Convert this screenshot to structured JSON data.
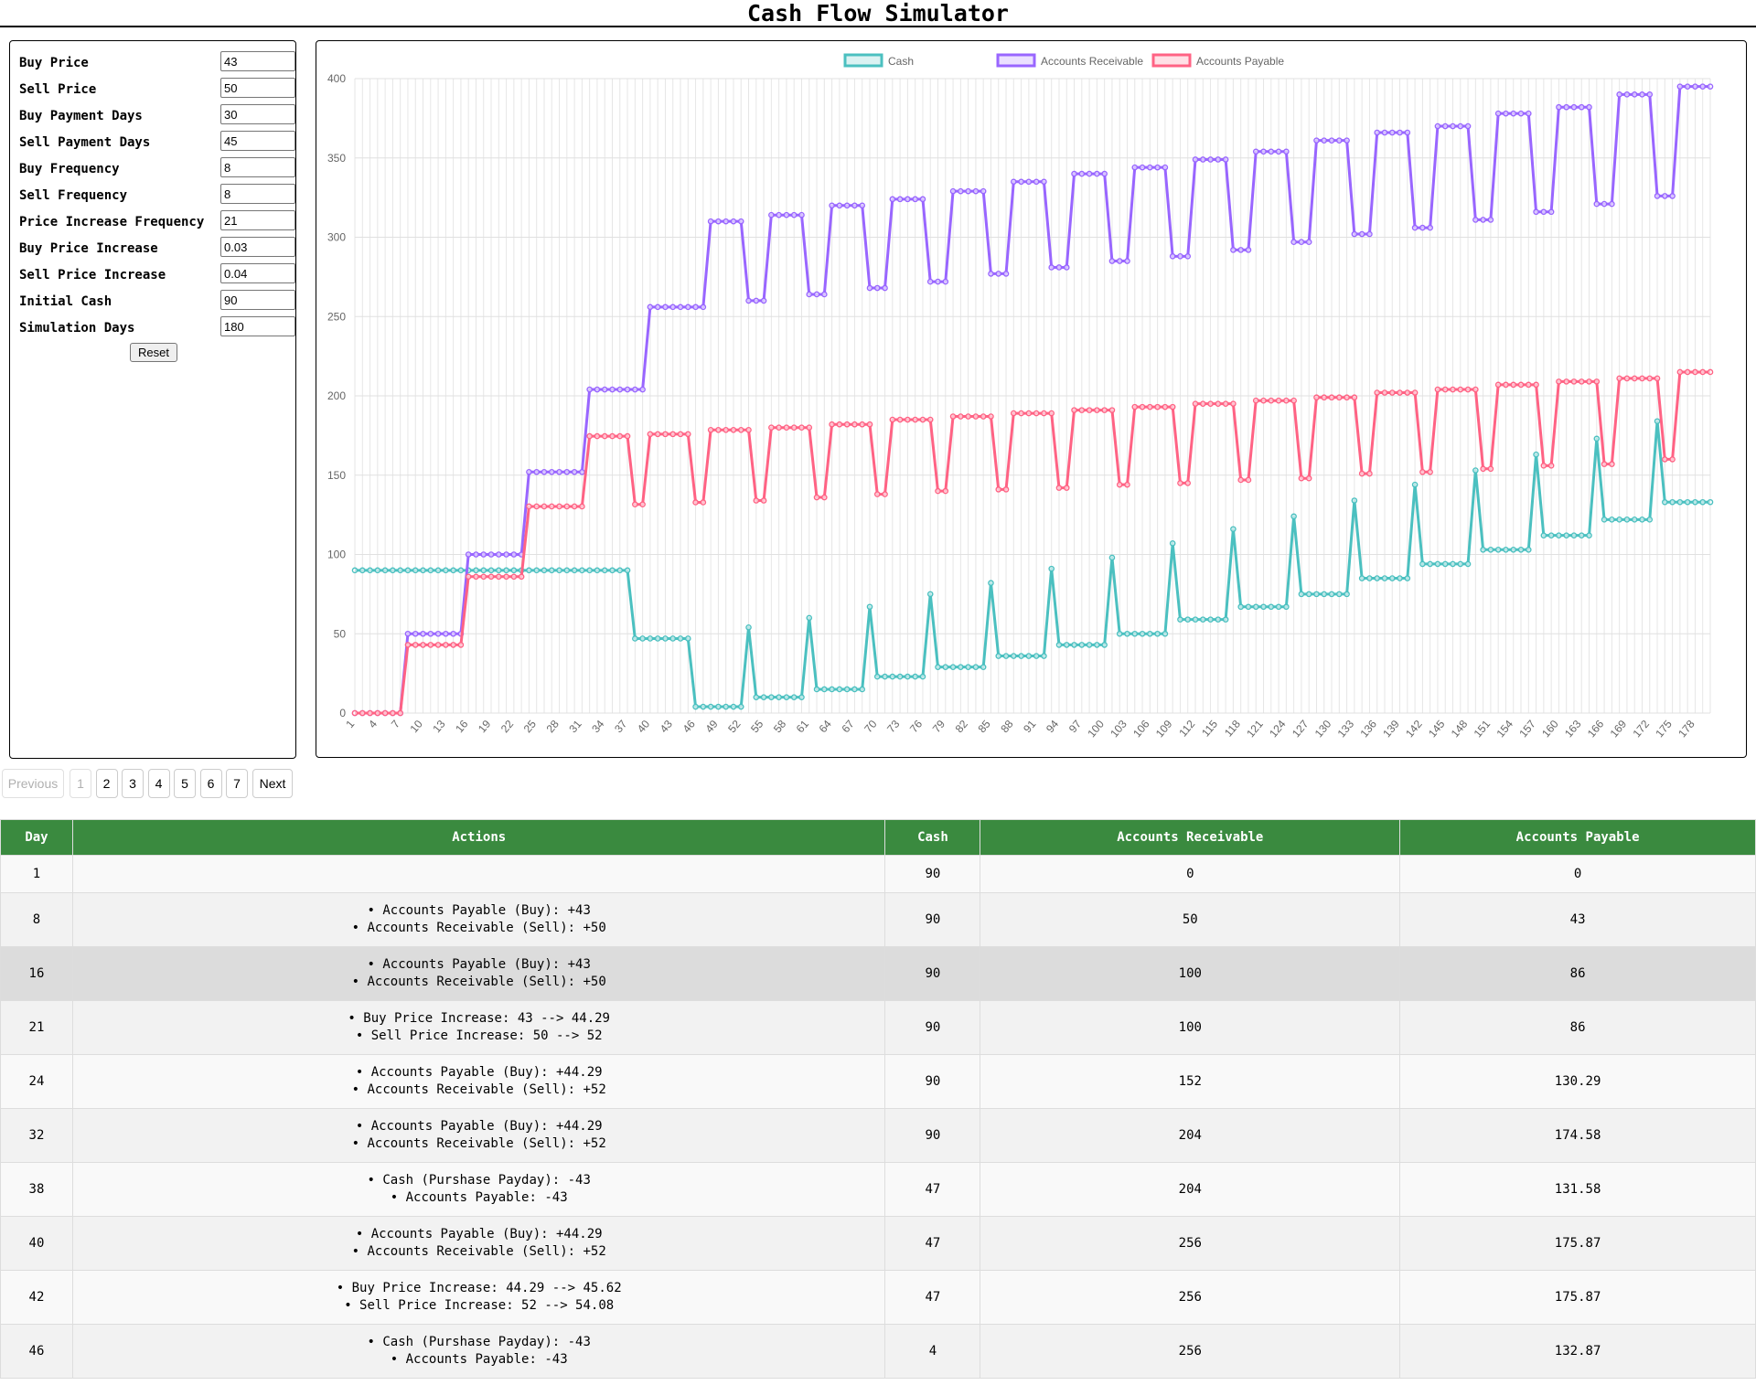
{
  "page": {
    "title": "Cash Flow Simulator"
  },
  "form": {
    "fields": [
      {
        "label": "Buy Price",
        "value": "43"
      },
      {
        "label": "Sell Price",
        "value": "50"
      },
      {
        "label": "Buy Payment Days",
        "value": "30"
      },
      {
        "label": "Sell Payment Days",
        "value": "45"
      },
      {
        "label": "Buy Frequency",
        "value": "8"
      },
      {
        "label": "Sell Frequency",
        "value": "8"
      },
      {
        "label": "Price Increase Frequency",
        "value": "21"
      },
      {
        "label": "Buy Price Increase",
        "value": "0.03"
      },
      {
        "label": "Sell Price Increase",
        "value": "0.04"
      },
      {
        "label": "Initial Cash",
        "value": "90"
      },
      {
        "label": "Simulation Days",
        "value": "180"
      }
    ],
    "reset_label": "Reset"
  },
  "pagination": {
    "previous_label": "Previous",
    "next_label": "Next",
    "pages": [
      "1",
      "2",
      "3",
      "4",
      "5",
      "6",
      "7"
    ],
    "current_page": "1"
  },
  "table": {
    "headers": [
      "Day",
      "Actions",
      "Cash",
      "Accounts Receivable",
      "Accounts Payable"
    ],
    "rows": [
      {
        "day": "1",
        "actions": [],
        "cash": "90",
        "ar": "0",
        "ap": "0"
      },
      {
        "day": "8",
        "actions": [
          "• Accounts Payable (Buy): +43",
          "• Accounts Receivable (Sell): +50"
        ],
        "cash": "90",
        "ar": "50",
        "ap": "43"
      },
      {
        "day": "16",
        "actions": [
          "• Accounts Payable (Buy): +43",
          "• Accounts Receivable (Sell): +50"
        ],
        "cash": "90",
        "ar": "100",
        "ap": "86"
      },
      {
        "day": "21",
        "actions": [
          "• Buy Price Increase: 43 --> 44.29",
          "• Sell Price Increase: 50 --> 52"
        ],
        "cash": "90",
        "ar": "100",
        "ap": "86"
      },
      {
        "day": "24",
        "actions": [
          "• Accounts Payable (Buy): +44.29",
          "• Accounts Receivable (Sell): +52"
        ],
        "cash": "90",
        "ar": "152",
        "ap": "130.29"
      },
      {
        "day": "32",
        "actions": [
          "• Accounts Payable (Buy): +44.29",
          "• Accounts Receivable (Sell): +52"
        ],
        "cash": "90",
        "ar": "204",
        "ap": "174.58"
      },
      {
        "day": "38",
        "actions": [
          "• Cash (Purshase Payday): -43",
          "• Accounts Payable: -43"
        ],
        "cash": "47",
        "ar": "204",
        "ap": "131.58"
      },
      {
        "day": "40",
        "actions": [
          "• Accounts Payable (Buy): +44.29",
          "• Accounts Receivable (Sell): +52"
        ],
        "cash": "47",
        "ar": "256",
        "ap": "175.87"
      },
      {
        "day": "42",
        "actions": [
          "• Buy Price Increase: 44.29 --> 45.62",
          "• Sell Price Increase: 52 --> 54.08"
        ],
        "cash": "47",
        "ar": "256",
        "ap": "175.87"
      },
      {
        "day": "46",
        "actions": [
          "• Cash (Purshase Payday): -43",
          "• Accounts Payable: -43"
        ],
        "cash": "4",
        "ar": "256",
        "ap": "132.87"
      }
    ]
  },
  "chart_data": {
    "type": "line",
    "legend_position": "top-center",
    "grid": true,
    "ylim": [
      0,
      400
    ],
    "y_ticks": [
      0,
      50,
      100,
      150,
      200,
      250,
      300,
      350,
      400
    ],
    "x_tick_labels": [
      "1",
      "4",
      "7",
      "10",
      "13",
      "16",
      "19",
      "22",
      "25",
      "28",
      "31",
      "34",
      "37",
      "40",
      "43",
      "46",
      "49",
      "52",
      "55",
      "58",
      "61",
      "64",
      "67",
      "70",
      "73",
      "76",
      "79",
      "82",
      "85",
      "88",
      "91",
      "94",
      "97",
      "100",
      "103",
      "106",
      "109",
      "112",
      "115",
      "118",
      "121",
      "124",
      "127",
      "130",
      "133",
      "136",
      "139",
      "142",
      "145",
      "148",
      "151",
      "154",
      "157",
      "160",
      "163",
      "166",
      "169",
      "172",
      "175",
      "178"
    ],
    "x_range": [
      1,
      180
    ],
    "series": [
      {
        "name": "Cash",
        "color": "#4bc0c0",
        "steps": [
          [
            1,
            90
          ],
          [
            38,
            47
          ],
          [
            46,
            4
          ],
          [
            53,
            54
          ],
          [
            54,
            10
          ],
          [
            61,
            60
          ],
          [
            62,
            15
          ],
          [
            69,
            67
          ],
          [
            70,
            23
          ],
          [
            77,
            75
          ],
          [
            78,
            29
          ],
          [
            85,
            82
          ],
          [
            86,
            36
          ],
          [
            93,
            91
          ],
          [
            94,
            43
          ],
          [
            101,
            98
          ],
          [
            102,
            50
          ],
          [
            109,
            107
          ],
          [
            110,
            59
          ],
          [
            117,
            116
          ],
          [
            118,
            67
          ],
          [
            125,
            124
          ],
          [
            126,
            75
          ],
          [
            133,
            134
          ],
          [
            134,
            85
          ],
          [
            141,
            144
          ],
          [
            142,
            94
          ],
          [
            149,
            153
          ],
          [
            150,
            103
          ],
          [
            157,
            163
          ],
          [
            158,
            112
          ],
          [
            165,
            173
          ],
          [
            166,
            122
          ],
          [
            173,
            184
          ],
          [
            174,
            133
          ]
        ]
      },
      {
        "name": "Accounts Receivable",
        "color": "#9966ff",
        "steps": [
          [
            1,
            0
          ],
          [
            8,
            50
          ],
          [
            16,
            100
          ],
          [
            24,
            152
          ],
          [
            32,
            204
          ],
          [
            40,
            256
          ],
          [
            48,
            310
          ],
          [
            53,
            260
          ],
          [
            56,
            314
          ],
          [
            61,
            264
          ],
          [
            64,
            320
          ],
          [
            69,
            268
          ],
          [
            72,
            324
          ],
          [
            77,
            272
          ],
          [
            80,
            329
          ],
          [
            85,
            277
          ],
          [
            88,
            335
          ],
          [
            93,
            281
          ],
          [
            96,
            340
          ],
          [
            101,
            285
          ],
          [
            104,
            344
          ],
          [
            109,
            288
          ],
          [
            112,
            349
          ],
          [
            117,
            292
          ],
          [
            120,
            354
          ],
          [
            125,
            297
          ],
          [
            128,
            361
          ],
          [
            133,
            302
          ],
          [
            136,
            366
          ],
          [
            141,
            306
          ],
          [
            144,
            370
          ],
          [
            149,
            311
          ],
          [
            152,
            378
          ],
          [
            157,
            316
          ],
          [
            160,
            382
          ],
          [
            165,
            321
          ],
          [
            168,
            390
          ],
          [
            173,
            326
          ],
          [
            176,
            395
          ]
        ]
      },
      {
        "name": "Accounts Payable",
        "color": "#ff6384",
        "steps": [
          [
            1,
            0
          ],
          [
            8,
            43
          ],
          [
            16,
            86
          ],
          [
            24,
            130.29
          ],
          [
            32,
            174.58
          ],
          [
            38,
            131.58
          ],
          [
            40,
            175.87
          ],
          [
            46,
            132.87
          ],
          [
            48,
            178.5
          ],
          [
            54,
            134
          ],
          [
            56,
            180
          ],
          [
            62,
            136
          ],
          [
            64,
            182
          ],
          [
            70,
            138
          ],
          [
            72,
            185
          ],
          [
            78,
            140
          ],
          [
            80,
            187
          ],
          [
            86,
            141
          ],
          [
            88,
            189
          ],
          [
            94,
            142
          ],
          [
            96,
            191
          ],
          [
            102,
            144
          ],
          [
            104,
            193
          ],
          [
            110,
            145
          ],
          [
            112,
            195
          ],
          [
            118,
            147
          ],
          [
            120,
            197
          ],
          [
            126,
            148
          ],
          [
            128,
            199
          ],
          [
            134,
            151
          ],
          [
            136,
            202
          ],
          [
            142,
            152
          ],
          [
            144,
            204
          ],
          [
            150,
            154
          ],
          [
            152,
            207
          ],
          [
            158,
            156
          ],
          [
            160,
            209
          ],
          [
            166,
            157
          ],
          [
            168,
            211
          ],
          [
            174,
            160
          ],
          [
            176,
            215
          ]
        ]
      }
    ]
  }
}
